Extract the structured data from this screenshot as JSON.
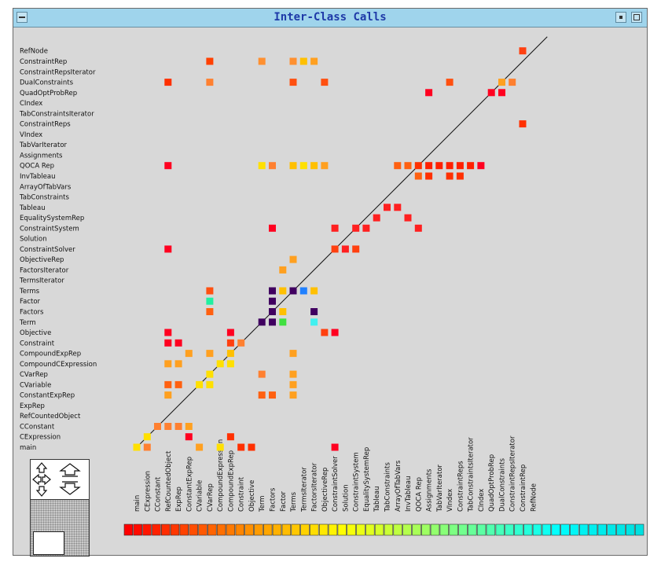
{
  "window": {
    "title": "Inter-Class Calls"
  },
  "icons": {
    "menu": "window-menu-icon",
    "minimize": "minimize-icon",
    "maximize": "maximize-icon",
    "pan": "pan-arrows-icon",
    "zoom_in": "zoom-in-icon",
    "zoom_out": "zoom-out-icon"
  },
  "chart_data": {
    "type": "heatmap",
    "title": "Inter-Class Calls",
    "classes": [
      "main",
      "CExpression",
      "CConstant",
      "RefCountedObject",
      "ExpRep",
      "ConstantExpRep",
      "CVariable",
      "CVarRep",
      "CompoundCExpression",
      "CompoundExpRep",
      "Constraint",
      "Objective",
      "Term",
      "Factors",
      "Factor",
      "Terms",
      "TermsIterator",
      "FactorsIterator",
      "ObjectiveRep",
      "ConstraintSolver",
      "Solution",
      "ConstraintSystem",
      "EqualitySystemRep",
      "Tableau",
      "TabConstraints",
      "ArrayOfTabVars",
      "InvTableau",
      "QOCA Rep",
      "Assignments",
      "TabVarIterator",
      "VIndex",
      "ConstraintReps",
      "TabConstraintsIterator",
      "CIndex",
      "QuadOptProbRep",
      "DualConstraints",
      "ConstraintRepsIterator",
      "ConstraintRep",
      "RefNode"
    ],
    "y_axis_labels": [
      "RefNode",
      "ConstraintRep",
      "ConstraintRepsIterator",
      "DualConstraints",
      "QuadOptProbRep",
      "CIndex",
      "TabConstraintsIterator",
      "ConstraintReps",
      "VIndex",
      "TabVarIterator",
      "Assignments",
      "QOCA Rep",
      "InvTableau",
      "ArrayOfTabVars",
      "TabConstraints",
      "Tableau",
      "EqualitySystemRep",
      "ConstraintSystem",
      "Solution",
      "ConstraintSolver",
      "ObjectiveRep",
      "FactorsIterator",
      "TermsIterator",
      "Terms",
      "Factor",
      "Factors",
      "Term",
      "Objective",
      "Constraint",
      "CompoundExpRep",
      "CompoundCExpression",
      "CVarRep",
      "CVariable",
      "ConstantExpRep",
      "ExpRep",
      "RefCountedObject",
      "CConstant",
      "CExpression",
      "main"
    ],
    "x_axis_labels": [
      "main",
      "CExpression",
      "CConstant",
      "RefCountedObject",
      "ExpRep",
      "ConstantExpRep",
      "CVariable",
      "CVarRep",
      "CompoundExpression",
      "CompoundExpRep",
      "Constraint",
      "Objective",
      "Term",
      "Factors",
      "Factor",
      "Terms",
      "TermsIterator",
      "FactorsIterator",
      "ObjectiveRep",
      "ConstraintSolver",
      "Solution",
      "ConstraintSystem",
      "EqualitySystemRep",
      "Tableau",
      "TabConstraints",
      "ArrayOfTabVars",
      "InvTableau",
      "QOCA Rep",
      "Assignments",
      "TabVarIterator",
      "VIndex",
      "ConstraintReps",
      "TabConstraintsIterator",
      "CIndex",
      "QuadOptProbRep",
      "DualConstraints",
      "ConstraintRepsIterator",
      "ConstraintRep",
      "RefNode"
    ],
    "color_scale": [
      "#ff0000",
      "#ff2000",
      "#ff4000",
      "#ff6000",
      "#ff8000",
      "#ffa000",
      "#ffc000",
      "#ffe000",
      "#ffff00",
      "#e0ff20",
      "#c0ff40",
      "#a0ff60",
      "#80ff80",
      "#60ffa0",
      "#40ffc0",
      "#20ffe0",
      "#00ffff",
      "#00f0f0",
      "#00e8e8",
      "#00e0e0"
    ],
    "cells": [
      {
        "row": "RefNode",
        "col": "ConstraintRep",
        "color": "#ff4010"
      },
      {
        "row": "ConstraintRep",
        "col": "CVarRep",
        "color": "#ff4000"
      },
      {
        "row": "ConstraintRep",
        "col": "Term",
        "color": "#ff9030"
      },
      {
        "row": "ConstraintRep",
        "col": "Terms",
        "color": "#ff9030"
      },
      {
        "row": "ConstraintRep",
        "col": "TermsIterator",
        "color": "#ffc000"
      },
      {
        "row": "ConstraintRep",
        "col": "FactorsIterator",
        "color": "#ffa020"
      },
      {
        "row": "DualConstraints",
        "col": "RefCountedObject",
        "color": "#ff3000"
      },
      {
        "row": "DualConstraints",
        "col": "CVarRep",
        "color": "#ff8030"
      },
      {
        "row": "DualConstraints",
        "col": "Terms",
        "color": "#ff5010"
      },
      {
        "row": "DualConstraints",
        "col": "ObjectiveRep",
        "color": "#ff5010"
      },
      {
        "row": "DualConstraints",
        "col": "VIndex",
        "color": "#ff5010"
      },
      {
        "row": "DualConstraints",
        "col": "DualConstraints",
        "color": "#ffa020"
      },
      {
        "row": "DualConstraints",
        "col": "ConstraintRepsIterator",
        "color": "#ff8030"
      },
      {
        "row": "QuadOptProbRep",
        "col": "Assignments",
        "color": "#ff0020"
      },
      {
        "row": "QuadOptProbRep",
        "col": "QuadOptProbRep",
        "color": "#ff0020"
      },
      {
        "row": "QuadOptProbRep",
        "col": "DualConstraints",
        "color": "#ff0020"
      },
      {
        "row": "ConstraintReps",
        "col": "ConstraintRep",
        "color": "#ff3000"
      },
      {
        "row": "QOCA Rep",
        "col": "RefCountedObject",
        "color": "#ff0020"
      },
      {
        "row": "QOCA Rep",
        "col": "Term",
        "color": "#ffe000"
      },
      {
        "row": "QOCA Rep",
        "col": "Factors",
        "color": "#ff8030"
      },
      {
        "row": "QOCA Rep",
        "col": "Terms",
        "color": "#ffc000"
      },
      {
        "row": "QOCA Rep",
        "col": "TermsIterator",
        "color": "#ffe000"
      },
      {
        "row": "QOCA Rep",
        "col": "FactorsIterator",
        "color": "#ffc000"
      },
      {
        "row": "QOCA Rep",
        "col": "ObjectiveRep",
        "color": "#ffa020"
      },
      {
        "row": "QOCA Rep",
        "col": "ArrayOfTabVars",
        "color": "#ff6010"
      },
      {
        "row": "QOCA Rep",
        "col": "InvTableau",
        "color": "#ff6010"
      },
      {
        "row": "QOCA Rep",
        "col": "QOCA Rep",
        "color": "#ff3000"
      },
      {
        "row": "QOCA Rep",
        "col": "Assignments",
        "color": "#ff2000"
      },
      {
        "row": "QOCA Rep",
        "col": "TabVarIterator",
        "color": "#ff2000"
      },
      {
        "row": "QOCA Rep",
        "col": "VIndex",
        "color": "#ff2000"
      },
      {
        "row": "QOCA Rep",
        "col": "ConstraintReps",
        "color": "#ff2000"
      },
      {
        "row": "QOCA Rep",
        "col": "TabConstraintsIterator",
        "color": "#ff2000"
      },
      {
        "row": "QOCA Rep",
        "col": "CIndex",
        "color": "#ff0020"
      },
      {
        "row": "InvTableau",
        "col": "QOCA Rep",
        "color": "#ff6010"
      },
      {
        "row": "InvTableau",
        "col": "Assignments",
        "color": "#ff3000"
      },
      {
        "row": "InvTableau",
        "col": "VIndex",
        "color": "#ff3000"
      },
      {
        "row": "InvTableau",
        "col": "ConstraintReps",
        "color": "#ff3000"
      },
      {
        "row": "Tableau",
        "col": "TabConstraints",
        "color": "#ff2020"
      },
      {
        "row": "Tableau",
        "col": "ArrayOfTabVars",
        "color": "#ff2020"
      },
      {
        "row": "EqualitySystemRep",
        "col": "Tableau",
        "color": "#ff2020"
      },
      {
        "row": "EqualitySystemRep",
        "col": "InvTableau",
        "color": "#ff2020"
      },
      {
        "row": "ConstraintSystem",
        "col": "Factors",
        "color": "#ff0020"
      },
      {
        "row": "ConstraintSystem",
        "col": "ConstraintSolver",
        "color": "#ff2020"
      },
      {
        "row": "ConstraintSystem",
        "col": "ConstraintSystem",
        "color": "#ff2020"
      },
      {
        "row": "ConstraintSystem",
        "col": "EqualitySystemRep",
        "color": "#ff2020"
      },
      {
        "row": "ConstraintSystem",
        "col": "QOCA Rep",
        "color": "#ff2020"
      },
      {
        "row": "ConstraintSolver",
        "col": "RefCountedObject",
        "color": "#ff0020"
      },
      {
        "row": "ConstraintSolver",
        "col": "ConstraintSolver",
        "color": "#ff4010"
      },
      {
        "row": "ConstraintSolver",
        "col": "Solution",
        "color": "#ff2020"
      },
      {
        "row": "ConstraintSolver",
        "col": "ConstraintSystem",
        "color": "#ff4010"
      },
      {
        "row": "ObjectiveRep",
        "col": "Terms",
        "color": "#ffa020"
      },
      {
        "row": "FactorsIterator",
        "col": "Factor",
        "color": "#ffa020"
      },
      {
        "row": "Terms",
        "col": "CVarRep",
        "color": "#ff5010"
      },
      {
        "row": "Terms",
        "col": "Factors",
        "color": "#400060"
      },
      {
        "row": "Terms",
        "col": "Factor",
        "color": "#ffc000"
      },
      {
        "row": "Terms",
        "col": "Terms",
        "color": "#400060"
      },
      {
        "row": "Terms",
        "col": "TermsIterator",
        "color": "#2080ff"
      },
      {
        "row": "Terms",
        "col": "FactorsIterator",
        "color": "#ffc000"
      },
      {
        "row": "Factor",
        "col": "CVarRep",
        "color": "#20f0a0"
      },
      {
        "row": "Factor",
        "col": "Factors",
        "color": "#400060"
      },
      {
        "row": "Factors",
        "col": "CVarRep",
        "color": "#ff6010"
      },
      {
        "row": "Factors",
        "col": "Factor",
        "color": "#ffc000"
      },
      {
        "row": "Factors",
        "col": "Factors",
        "color": "#400060"
      },
      {
        "row": "Factors",
        "col": "FactorsIterator",
        "color": "#400060"
      },
      {
        "row": "Term",
        "col": "Term",
        "color": "#400060"
      },
      {
        "row": "Term",
        "col": "Factors",
        "color": "#400060"
      },
      {
        "row": "Term",
        "col": "Factor",
        "color": "#40e040"
      },
      {
        "row": "Term",
        "col": "FactorsIterator",
        "color": "#40f0f0"
      },
      {
        "row": "Objective",
        "col": "RefCountedObject",
        "color": "#ff0020"
      },
      {
        "row": "Objective",
        "col": "CompoundExpRep",
        "color": "#ff0020"
      },
      {
        "row": "Objective",
        "col": "ObjectiveRep",
        "color": "#ff4010"
      },
      {
        "row": "Objective",
        "col": "ConstraintSolver",
        "color": "#ff0020"
      },
      {
        "row": "Constraint",
        "col": "RefCountedObject",
        "color": "#ff0020"
      },
      {
        "row": "Constraint",
        "col": "ExpRep",
        "color": "#ff0020"
      },
      {
        "row": "Constraint",
        "col": "CompoundExpRep",
        "color": "#ff4010"
      },
      {
        "row": "Constraint",
        "col": "Constraint",
        "color": "#ff8030"
      },
      {
        "row": "CompoundExpRep",
        "col": "ConstantExpRep",
        "color": "#ffa020"
      },
      {
        "row": "CompoundExpRep",
        "col": "CVarRep",
        "color": "#ffa020"
      },
      {
        "row": "CompoundExpRep",
        "col": "CompoundExpRep",
        "color": "#ffc000"
      },
      {
        "row": "CompoundExpRep",
        "col": "Terms",
        "color": "#ffa020"
      },
      {
        "row": "CompoundCExpression",
        "col": "RefCountedObject",
        "color": "#ffa020"
      },
      {
        "row": "CompoundCExpression",
        "col": "ExpRep",
        "color": "#ffa020"
      },
      {
        "row": "CompoundCExpression",
        "col": "CompoundExpression",
        "color": "#ffe000"
      },
      {
        "row": "CompoundCExpression",
        "col": "CompoundExpRep",
        "color": "#ffe000"
      },
      {
        "row": "CVarRep",
        "col": "CVarRep",
        "color": "#ffe000"
      },
      {
        "row": "CVarRep",
        "col": "Term",
        "color": "#ff8030"
      },
      {
        "row": "CVarRep",
        "col": "Terms",
        "color": "#ffa020"
      },
      {
        "row": "CVariable",
        "col": "RefCountedObject",
        "color": "#ff6010"
      },
      {
        "row": "CVariable",
        "col": "ExpRep",
        "color": "#ff6010"
      },
      {
        "row": "CVariable",
        "col": "CVariable",
        "color": "#ffe000"
      },
      {
        "row": "CVariable",
        "col": "CVarRep",
        "color": "#ffe000"
      },
      {
        "row": "CVariable",
        "col": "Terms",
        "color": "#ffa020"
      },
      {
        "row": "ConstantExpRep",
        "col": "RefCountedObject",
        "color": "#ffa020"
      },
      {
        "row": "ConstantExpRep",
        "col": "Term",
        "color": "#ff6010"
      },
      {
        "row": "ConstantExpRep",
        "col": "Factors",
        "color": "#ff6010"
      },
      {
        "row": "ConstantExpRep",
        "col": "Terms",
        "color": "#ffa020"
      },
      {
        "row": "CConstant",
        "col": "CConstant",
        "color": "#ff8030"
      },
      {
        "row": "CConstant",
        "col": "RefCountedObject",
        "color": "#ff8030"
      },
      {
        "row": "CConstant",
        "col": "ExpRep",
        "color": "#ff8030"
      },
      {
        "row": "CConstant",
        "col": "ConstantExpRep",
        "color": "#ffa020"
      },
      {
        "row": "CExpression",
        "col": "CExpression",
        "color": "#ffe000"
      },
      {
        "row": "CExpression",
        "col": "ConstantExpRep",
        "color": "#ff0020"
      },
      {
        "row": "CExpression",
        "col": "CompoundExpRep",
        "color": "#ff3000"
      },
      {
        "row": "main",
        "col": "main",
        "color": "#ffe000"
      },
      {
        "row": "main",
        "col": "CExpression",
        "color": "#ff8030"
      },
      {
        "row": "main",
        "col": "CVariable",
        "color": "#ffa020"
      },
      {
        "row": "main",
        "col": "CompoundExpression",
        "color": "#ffe000"
      },
      {
        "row": "main",
        "col": "Constraint",
        "color": "#ff3000"
      },
      {
        "row": "main",
        "col": "Objective",
        "color": "#ff3000"
      },
      {
        "row": "main",
        "col": "ConstraintSolver",
        "color": "#ff0020"
      }
    ],
    "diagonal_line": true,
    "grid": false
  }
}
